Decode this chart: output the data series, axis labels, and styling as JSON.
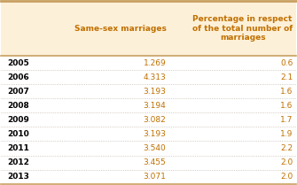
{
  "years": [
    "2005",
    "2006",
    "2007",
    "2008",
    "2009",
    "2010",
    "2011",
    "2012",
    "2013"
  ],
  "same_sex": [
    "1.269",
    "4.313",
    "3.193",
    "3.194",
    "3.082",
    "3.193",
    "3.540",
    "3.455",
    "3.071"
  ],
  "percentage": [
    "0.6",
    "2.1",
    "1.6",
    "1.6",
    "1.7",
    "1.9",
    "2.2",
    "2.0",
    "2.0"
  ],
  "col1_header": "Same-sex marriages",
  "col2_header": "Percentage in respect\nof the total number of\nmarriages",
  "header_bg": "#fdf0d8",
  "border_color": "#c8a060",
  "row_line_color": "#b0a090",
  "header_text_color": "#c07000",
  "year_color": "#000000",
  "data_color": "#c07000"
}
